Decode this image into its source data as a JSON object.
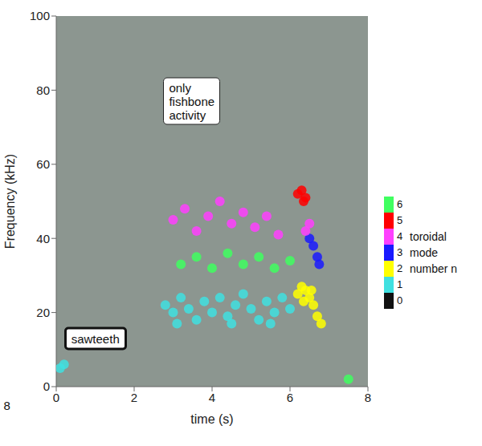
{
  "chart_data": {
    "type": "scatter",
    "x_label": "time (s)",
    "y_label": "Frequency (kHz)",
    "xlim": [
      0,
      8
    ],
    "xticks": [
      0,
      2,
      4,
      6,
      8
    ],
    "ylim": [
      0,
      100
    ],
    "yticks": [
      0,
      20,
      40,
      60,
      80,
      100
    ],
    "grid": false,
    "colorbar": {
      "title": "toroidal mode number n",
      "ticks": [
        0,
        1,
        2,
        3,
        4,
        5,
        6
      ],
      "colors": [
        "#111111",
        "#40e0e0",
        "#ffff00",
        "#1a1aff",
        "#ff40ff",
        "#ff0000",
        "#40ff60"
      ]
    },
    "series": [
      {
        "mode": 1,
        "x": [
          0.1,
          0.2,
          2.8,
          3.0,
          3.2,
          3.4,
          3.6,
          3.8,
          4.0,
          4.2,
          4.4,
          4.6,
          4.8,
          5.0,
          5.2,
          5.4,
          5.6,
          5.8,
          6.0,
          3.1,
          4.5,
          5.5
        ],
        "y": [
          5,
          6,
          22,
          20,
          24,
          21,
          18,
          23,
          20,
          24,
          19,
          22,
          25,
          21,
          18,
          23,
          20,
          24,
          21,
          17,
          17,
          17
        ]
      },
      {
        "mode": 2,
        "x": [
          6.2,
          6.3,
          6.4,
          6.5,
          6.6,
          6.7,
          6.8,
          6.35,
          6.55
        ],
        "y": [
          25,
          27,
          26,
          24,
          22,
          19,
          17,
          23,
          26
        ]
      },
      {
        "mode": 3,
        "x": [
          6.5,
          6.6,
          6.7,
          6.75
        ],
        "y": [
          40,
          38,
          35,
          33
        ]
      },
      {
        "mode": 4,
        "x": [
          3.0,
          3.3,
          3.6,
          3.9,
          4.2,
          4.5,
          4.8,
          5.1,
          5.4,
          5.7,
          6.4,
          6.5
        ],
        "y": [
          45,
          48,
          42,
          46,
          50,
          44,
          47,
          43,
          46,
          41,
          42,
          44
        ]
      },
      {
        "mode": 5,
        "x": [
          6.2,
          6.3,
          6.4,
          6.35
        ],
        "y": [
          52,
          53,
          51,
          50
        ]
      },
      {
        "mode": 6,
        "x": [
          3.2,
          3.6,
          4.0,
          4.4,
          4.8,
          5.2,
          5.6,
          6.0,
          7.5
        ],
        "y": [
          33,
          35,
          32,
          36,
          33,
          35,
          32,
          34,
          2
        ]
      }
    ],
    "annotations": [
      {
        "text": "sawteeth",
        "x": 0.2,
        "y": 13
      },
      {
        "text": "only fishbone activity",
        "x": 2.75,
        "y": 77
      },
      {
        "text": "8",
        "x": -1.35,
        "y": -5
      }
    ]
  }
}
